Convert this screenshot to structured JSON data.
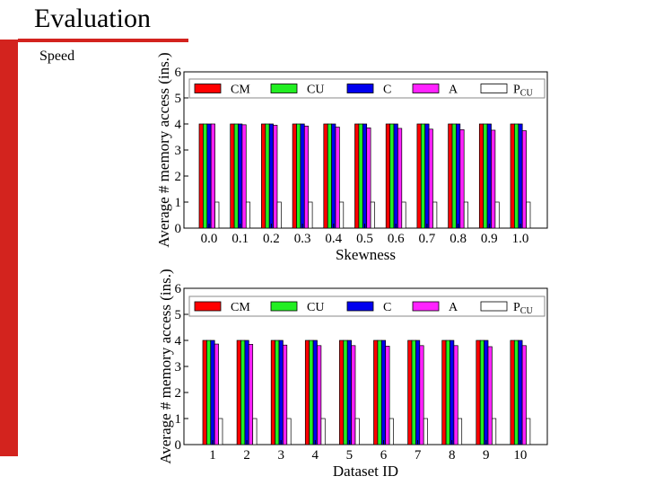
{
  "slide": {
    "title": "Evaluation",
    "subtitle": "Speed",
    "accent_color": "#d3231e"
  },
  "chart_data": [
    {
      "type": "bar",
      "title": "",
      "xlabel": "Skewness",
      "ylabel": "Average # memory access (ins.)",
      "ylim": [
        0,
        6
      ],
      "yticks": [
        "0",
        "1",
        "2",
        "3",
        "4",
        "5",
        "6"
      ],
      "categories": [
        "0.0",
        "0.1",
        "0.2",
        "0.3",
        "0.4",
        "0.5",
        "0.6",
        "0.7",
        "0.8",
        "0.9",
        "1.0"
      ],
      "legend_position": "top",
      "series": [
        {
          "name": "CM",
          "color": "#ff0000",
          "values": [
            4,
            4,
            4,
            4,
            4,
            4,
            4,
            4,
            4,
            4,
            4
          ]
        },
        {
          "name": "CU",
          "color": "#22ee22",
          "values": [
            4,
            4,
            4,
            4,
            4,
            4,
            4,
            4,
            4,
            4,
            4
          ]
        },
        {
          "name": "C",
          "color": "#0000ee",
          "values": [
            4,
            4,
            4,
            4,
            4,
            4,
            4,
            4,
            4,
            4,
            4
          ]
        },
        {
          "name": "A",
          "color": "#ff22ff",
          "values": [
            4,
            3.97,
            3.95,
            3.92,
            3.88,
            3.85,
            3.83,
            3.8,
            3.78,
            3.76,
            3.74
          ]
        },
        {
          "name": "PCU",
          "name_main": "P",
          "name_sub": "CU",
          "color": "#ffffff",
          "values": [
            1,
            1,
            1,
            1,
            1,
            1,
            1,
            1,
            1,
            1,
            1
          ]
        }
      ]
    },
    {
      "type": "bar",
      "title": "",
      "xlabel": "Dataset ID",
      "ylabel": "Average # memory access (ins.)",
      "ylim": [
        0,
        6
      ],
      "yticks": [
        "0",
        "1",
        "2",
        "3",
        "4",
        "5",
        "6"
      ],
      "categories": [
        "1",
        "2",
        "3",
        "4",
        "5",
        "6",
        "7",
        "8",
        "9",
        "10"
      ],
      "legend_position": "top",
      "series": [
        {
          "name": "CM",
          "color": "#ff0000",
          "values": [
            4,
            4,
            4,
            4,
            4,
            4,
            4,
            4,
            4,
            4
          ]
        },
        {
          "name": "CU",
          "color": "#22ee22",
          "values": [
            4,
            4,
            4,
            4,
            4,
            4,
            4,
            4,
            4,
            4
          ]
        },
        {
          "name": "C",
          "color": "#0000ee",
          "values": [
            4,
            4,
            4,
            4,
            4,
            4,
            4,
            4,
            4,
            4
          ]
        },
        {
          "name": "A",
          "color": "#ff22ff",
          "values": [
            3.86,
            3.85,
            3.82,
            3.8,
            3.8,
            3.78,
            3.8,
            3.8,
            3.76,
            3.8
          ]
        },
        {
          "name": "PCU",
          "name_main": "P",
          "name_sub": "CU",
          "color": "#ffffff",
          "values": [
            1,
            1,
            1,
            1,
            1,
            1,
            1,
            1,
            1,
            1
          ]
        }
      ]
    }
  ]
}
